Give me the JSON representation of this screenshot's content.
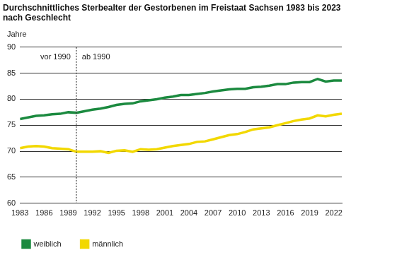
{
  "chart_data": {
    "type": "line",
    "title": [
      "Durchschnittliches Sterbealter der Gestorbenen im Freistaat Sachsen 1983 bis 2023",
      "nach Geschlecht"
    ],
    "y_label": "Jahre",
    "x": [
      1983,
      1984,
      1985,
      1986,
      1987,
      1988,
      1989,
      1990,
      1991,
      1992,
      1993,
      1994,
      1995,
      1996,
      1997,
      1998,
      1999,
      2000,
      2001,
      2002,
      2003,
      2004,
      2005,
      2006,
      2007,
      2008,
      2009,
      2010,
      2011,
      2012,
      2013,
      2014,
      2015,
      2016,
      2017,
      2018,
      2019,
      2020,
      2021,
      2022,
      2023
    ],
    "series": [
      {
        "name": "weiblich",
        "color": "#1b8a3f",
        "values": [
          76.2,
          76.5,
          76.8,
          76.9,
          77.1,
          77.2,
          77.5,
          77.4,
          77.7,
          78.0,
          78.2,
          78.5,
          78.9,
          79.1,
          79.2,
          79.6,
          79.8,
          80.0,
          80.3,
          80.5,
          80.8,
          80.8,
          81.0,
          81.2,
          81.5,
          81.7,
          81.9,
          82.0,
          82.0,
          82.3,
          82.4,
          82.6,
          82.9,
          82.9,
          83.2,
          83.3,
          83.3,
          83.9,
          83.4,
          83.6,
          83.6
        ]
      },
      {
        "name": "männlich",
        "color": "#f2d800",
        "values": [
          70.6,
          70.9,
          71.0,
          70.9,
          70.6,
          70.5,
          70.4,
          69.9,
          69.9,
          69.9,
          70.0,
          69.7,
          70.1,
          70.2,
          69.9,
          70.4,
          70.3,
          70.4,
          70.7,
          71.0,
          71.2,
          71.4,
          71.8,
          71.9,
          72.3,
          72.7,
          73.1,
          73.3,
          73.7,
          74.2,
          74.4,
          74.6,
          75.0,
          75.4,
          75.8,
          76.1,
          76.3,
          76.9,
          76.7,
          77.0,
          77.2
        ]
      }
    ],
    "xlim": [
      1983,
      2023
    ],
    "xticks": [
      1983,
      1986,
      1989,
      1992,
      1995,
      1998,
      2001,
      2004,
      2007,
      2010,
      2013,
      2016,
      2019,
      2022
    ],
    "ylim": [
      60,
      90
    ],
    "yticks": [
      60,
      65,
      70,
      75,
      80,
      85,
      90
    ],
    "grid": true,
    "legend": "bottom",
    "annotations": [
      {
        "x": 1990,
        "line_style": "dotted",
        "before": "vor 1990",
        "after": "ab 1990"
      }
    ]
  }
}
